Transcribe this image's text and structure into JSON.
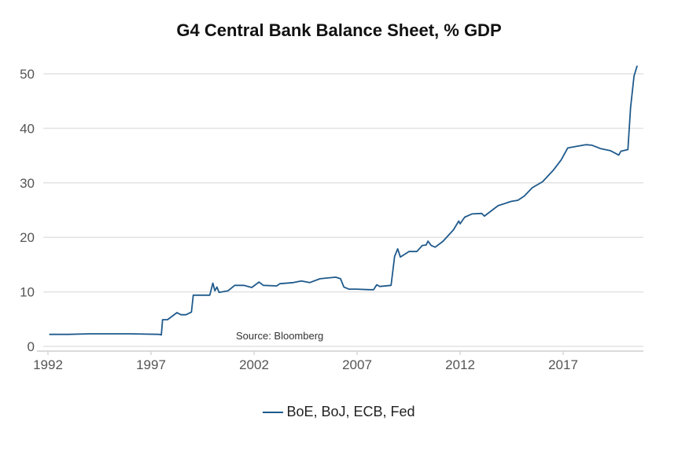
{
  "chart_data": {
    "type": "line",
    "title": "G4 Central Bank Balance Sheet, %  GDP",
    "xlabel": "",
    "ylabel": "",
    "xlim": [
      1991.8,
      2021.3
    ],
    "ylim": [
      0,
      50
    ],
    "x_ticks": [
      1992,
      1997,
      2002,
      2007,
      2012,
      2017
    ],
    "y_ticks": [
      0,
      10,
      20,
      30,
      40,
      50
    ],
    "grid": true,
    "legend_position": "bottom",
    "annotation": "Source: Bloomberg",
    "colors": {
      "series": "#1f5a8c",
      "grid": "#e3e3e3"
    },
    "series": [
      {
        "name": "BoE, BoJ, ECB, Fed",
        "x": [
          1992.06,
          1993.0,
          1994.0,
          1996.0,
          1997.4,
          1997.5,
          1997.56,
          1997.8,
          1998.26,
          1998.45,
          1998.7,
          1998.96,
          1999.05,
          1999.85,
          2000.0,
          2000.1,
          2000.2,
          2000.3,
          2000.74,
          2001.06,
          2001.5,
          2001.89,
          2002.24,
          2002.45,
          2003.1,
          2003.25,
          2003.9,
          2004.3,
          2004.7,
          2005.2,
          2005.96,
          2006.2,
          2006.36,
          2006.6,
          2006.97,
          2007.6,
          2007.8,
          2007.95,
          2008.1,
          2008.65,
          2008.82,
          2008.97,
          2009.1,
          2009.52,
          2009.9,
          2010.16,
          2010.35,
          2010.44,
          2010.6,
          2010.79,
          2011.17,
          2011.68,
          2011.93,
          2012.0,
          2012.22,
          2012.57,
          2013.05,
          2013.18,
          2013.84,
          2014.48,
          2014.8,
          2015.12,
          2015.5,
          2016.0,
          2016.52,
          2016.9,
          2017.22,
          2017.66,
          2018.1,
          2018.4,
          2018.8,
          2019.3,
          2019.7,
          2019.8,
          2020.14,
          2020.27,
          2020.44,
          2020.59
        ],
        "values": [
          2.2,
          2.2,
          2.3,
          2.3,
          2.2,
          2.1,
          4.9,
          4.9,
          6.2,
          5.8,
          5.8,
          6.3,
          9.4,
          9.4,
          11.6,
          10.2,
          10.9,
          9.9,
          10.2,
          11.2,
          11.2,
          10.8,
          11.8,
          11.2,
          11.1,
          11.5,
          11.7,
          12.0,
          11.7,
          12.4,
          12.7,
          12.4,
          10.9,
          10.5,
          10.5,
          10.4,
          10.4,
          11.3,
          11.0,
          11.2,
          16.5,
          17.9,
          16.4,
          17.4,
          17.4,
          18.5,
          18.6,
          19.3,
          18.5,
          18.2,
          19.3,
          21.4,
          23.0,
          22.5,
          23.7,
          24.3,
          24.4,
          23.9,
          25.8,
          26.6,
          26.8,
          27.6,
          29.1,
          30.2,
          32.3,
          34.2,
          36.4,
          36.7,
          37.0,
          36.9,
          36.3,
          35.9,
          35.1,
          35.8,
          36.1,
          43.8,
          49.6,
          51.5
        ]
      }
    ]
  }
}
